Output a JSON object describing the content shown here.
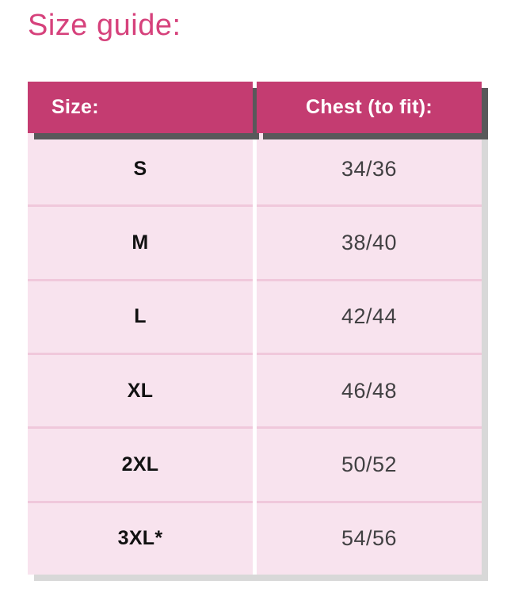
{
  "page": {
    "title": "Size guide:"
  },
  "table": {
    "headers": [
      {
        "label": "Size:"
      },
      {
        "label": "Chest (to fit):"
      }
    ],
    "rows": [
      {
        "size": "S",
        "chest": "34/36"
      },
      {
        "size": "M",
        "chest": "38/40"
      },
      {
        "size": "L",
        "chest": "42/44"
      },
      {
        "size": "XL",
        "chest": "46/48"
      },
      {
        "size": "2XL",
        "chest": "50/52"
      },
      {
        "size": "3XL*",
        "chest": "54/56"
      }
    ]
  },
  "colors": {
    "title_pink": "#d6427c",
    "header_background": "#c43c71",
    "header_text": "#ffffff",
    "header_shadow": "#58585a",
    "row_background": "#f8e3ee",
    "row_separator": "#f0c8db",
    "body_shadow": "#d8d8d8",
    "size_text": "#111111",
    "chest_text": "#414042"
  }
}
